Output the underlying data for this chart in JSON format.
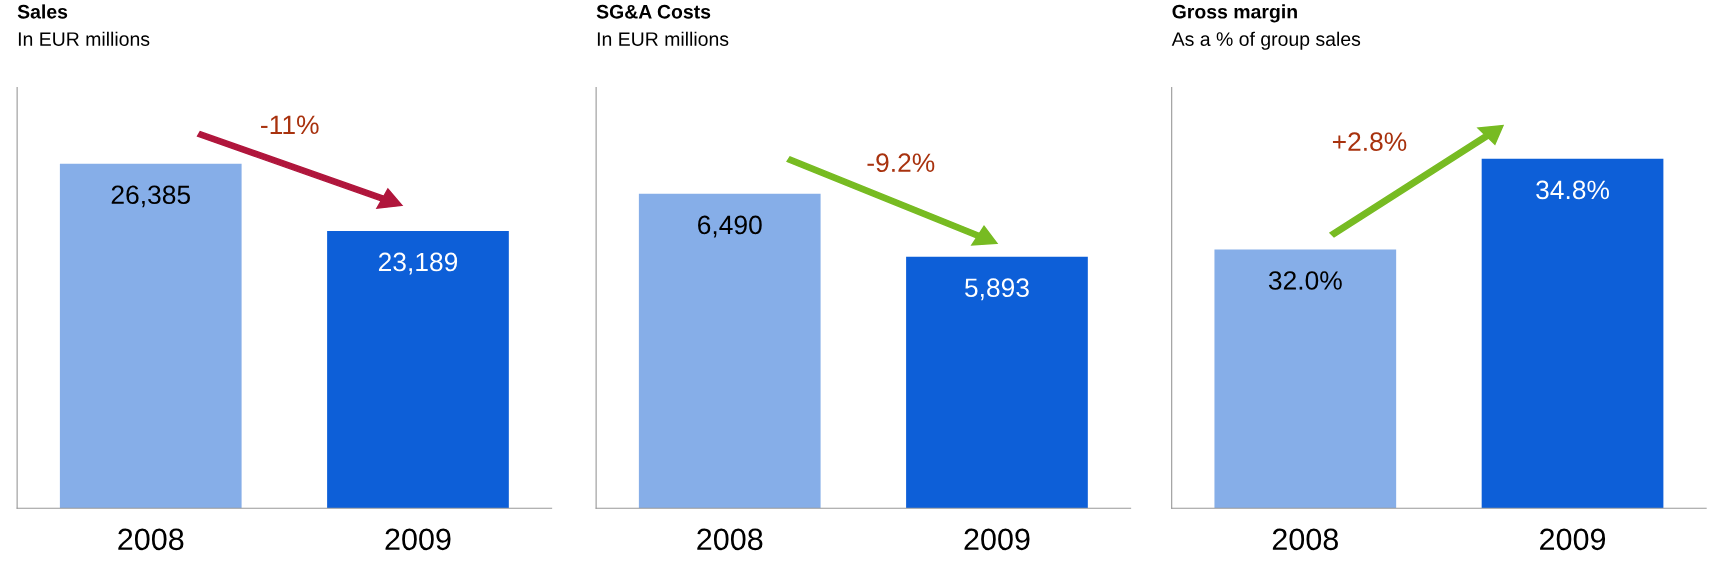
{
  "chart_data": [
    {
      "type": "bar",
      "title": "Sales",
      "subtitle": "In EUR millions",
      "categories": [
        "2008",
        "2009"
      ],
      "values": [
        26385,
        23189
      ],
      "colors": [
        "#86aee8",
        "#0d5fd8"
      ],
      "ylim": [
        10000,
        30000
      ],
      "tick_labels": "x",
      "data_labels": true,
      "value_labels": [
        "26,385",
        "23,189"
      ],
      "annotations": [
        "-11%"
      ]
    },
    {
      "type": "bar",
      "title": "SG&A Costs",
      "subtitle": "In EUR millions",
      "categories": [
        "2008",
        "2009"
      ],
      "values": [
        6490,
        5893
      ],
      "colors": [
        "#86aee8",
        "#0d5fd8"
      ],
      "ylim": [
        3500,
        7500
      ],
      "tick_labels": "x",
      "data_labels": true,
      "value_labels": [
        "6,490",
        "5,893"
      ],
      "annotations": [
        "-9.2%"
      ]
    },
    {
      "type": "bar",
      "title": "Gross margin",
      "subtitle": "As a % of group sales",
      "categories": [
        "2008",
        "2009"
      ],
      "values": [
        32.0,
        34.8
      ],
      "colors": [
        "#86aee8",
        "#0d5fd8"
      ],
      "ylim": [
        24,
        37
      ],
      "tick_labels": "x",
      "data_labels": true,
      "value_labels": [
        "32.0%",
        "34.8%"
      ],
      "annotations": [
        "+2.8%"
      ]
    }
  ]
}
